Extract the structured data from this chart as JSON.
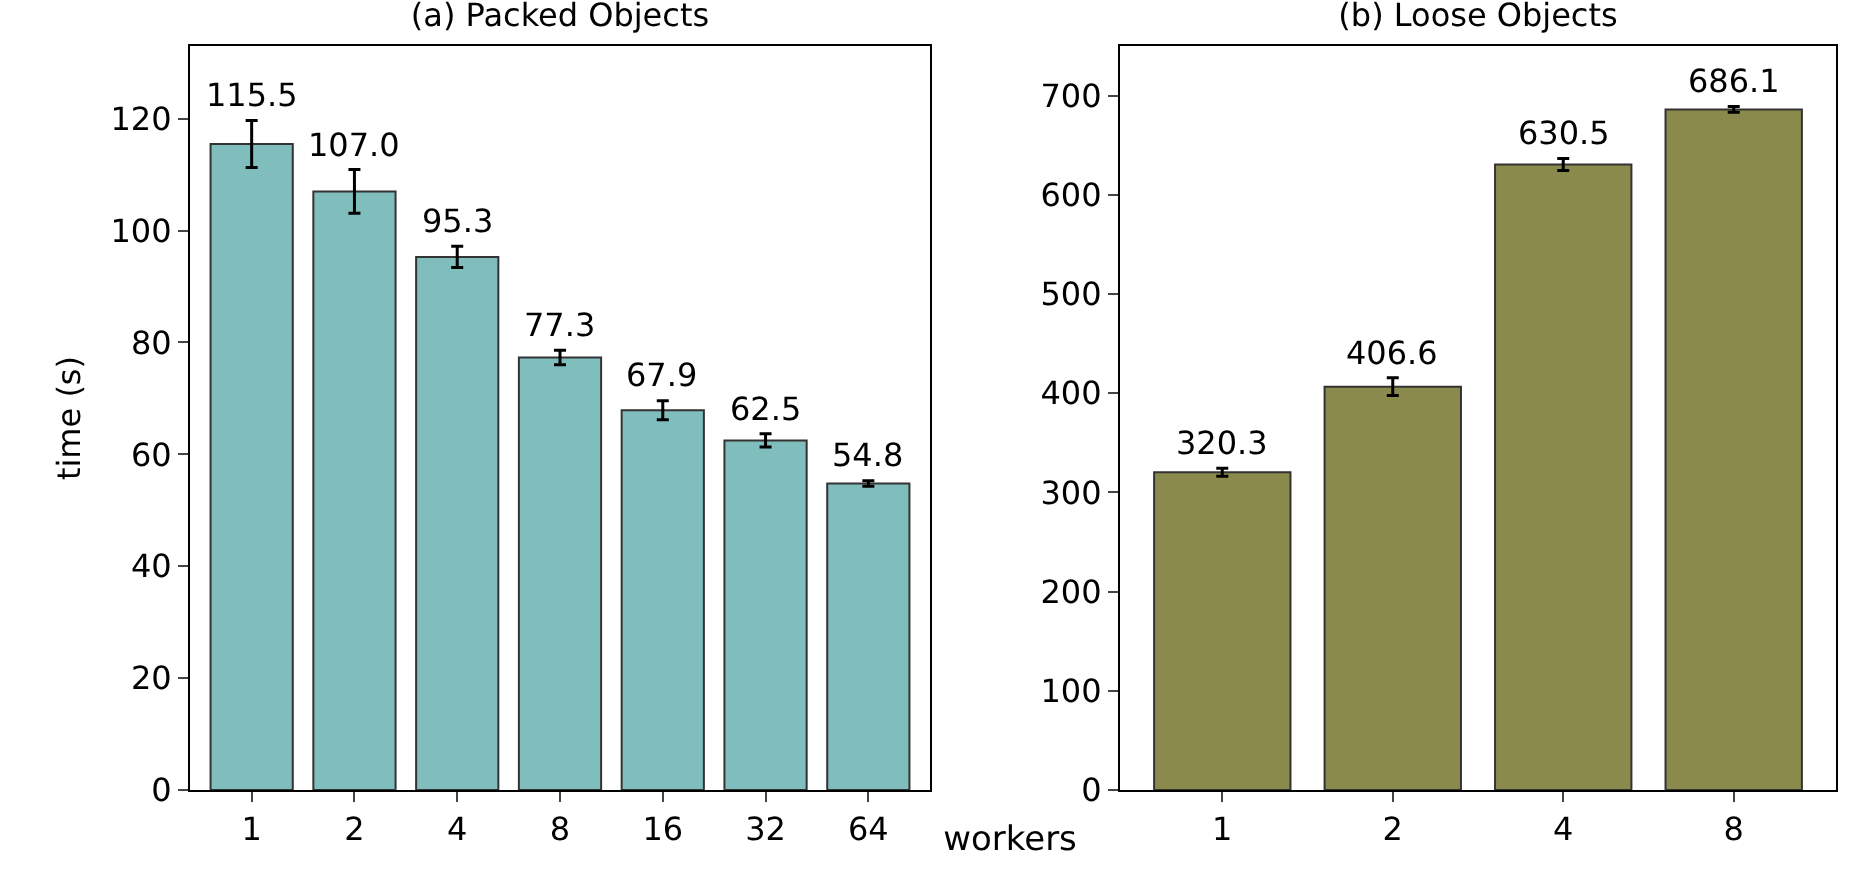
{
  "chart_data": [
    {
      "type": "bar",
      "title": "(a) Packed Objects",
      "xlabel": "workers",
      "ylabel": "time (s)",
      "categories": [
        "1",
        "2",
        "4",
        "8",
        "16",
        "32",
        "64"
      ],
      "values": [
        115.5,
        107.0,
        95.3,
        77.3,
        67.9,
        62.5,
        54.8
      ],
      "value_labels": [
        "115.5",
        "107.0",
        "95.3",
        "77.3",
        "67.9",
        "62.5",
        "54.8"
      ],
      "errors": [
        4.2,
        3.9,
        1.9,
        1.3,
        1.7,
        1.2,
        0.5
      ],
      "color": "#80bdbd",
      "ylim": [
        0,
        133
      ],
      "yticks": [
        0,
        20,
        40,
        60,
        80,
        100,
        120
      ]
    },
    {
      "type": "bar",
      "title": "(b) Loose Objects",
      "categories": [
        "1",
        "2",
        "4",
        "8"
      ],
      "values": [
        320.3,
        406.6,
        630.5,
        686.1
      ],
      "value_labels": [
        "320.3",
        "406.6",
        "630.5",
        "686.1"
      ],
      "errors": [
        4,
        9,
        6,
        3
      ],
      "color": "#8b8a4d",
      "ylim": [
        0,
        750
      ],
      "yticks": [
        0,
        100,
        200,
        300,
        400,
        500,
        600,
        700
      ]
    }
  ]
}
